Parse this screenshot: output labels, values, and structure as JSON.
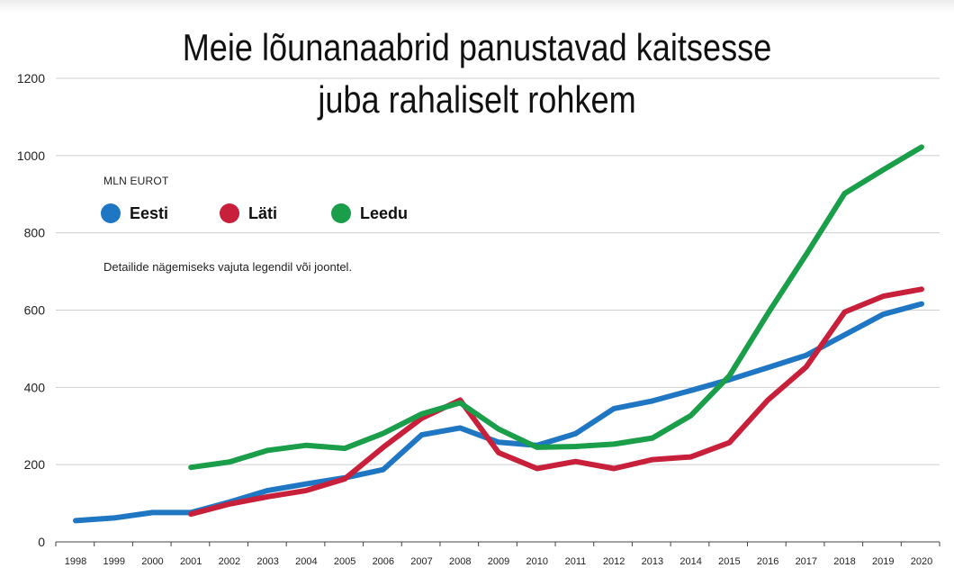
{
  "title": {
    "line1": "Meie lõunanaabrid panustavad kaitsesse",
    "line2": "juba rahaliselt rohkem"
  },
  "unit_label": "MLN EUROT",
  "hint": "Detailide nägemiseks vajuta legendil või joontel.",
  "chart_data": {
    "type": "line",
    "title": "Meie lõunanaabrid panustavad kaitsesse juba rahaliselt rohkem",
    "ylabel": "MLN EUROT",
    "xlabel": "",
    "ylim": [
      0,
      1200
    ],
    "yticks": [
      0,
      200,
      400,
      600,
      800,
      1000,
      1200
    ],
    "grid": true,
    "legend_position": "top-left",
    "x": [
      "1998",
      "1999",
      "2000",
      "2001",
      "2002",
      "2003",
      "2004",
      "2005",
      "2006",
      "2007",
      "2008",
      "2009",
      "2010",
      "2011",
      "2012",
      "2013",
      "2014",
      "2015",
      "2016",
      "2017",
      "2018",
      "2019",
      "2020"
    ],
    "series": [
      {
        "name": "Eesti",
        "color": "#1f77c4",
        "values": [
          55,
          62,
          76,
          76,
          103,
          133,
          150,
          166,
          187,
          277,
          295,
          258,
          250,
          280,
          345,
          365,
          392,
          420,
          451,
          483,
          536,
          589,
          616
        ]
      },
      {
        "name": "Läti",
        "color": "#c8203a",
        "values": [
          null,
          null,
          null,
          72,
          98,
          117,
          133,
          163,
          245,
          320,
          367,
          231,
          190,
          208,
          190,
          213,
          220,
          257,
          367,
          453,
          595,
          636,
          654
        ]
      },
      {
        "name": "Leedu",
        "color": "#1a9e4a",
        "values": [
          null,
          null,
          null,
          193,
          207,
          237,
          250,
          242,
          281,
          331,
          360,
          292,
          245,
          247,
          253,
          269,
          327,
          430,
          591,
          744,
          902,
          963,
          1022
        ]
      }
    ]
  }
}
